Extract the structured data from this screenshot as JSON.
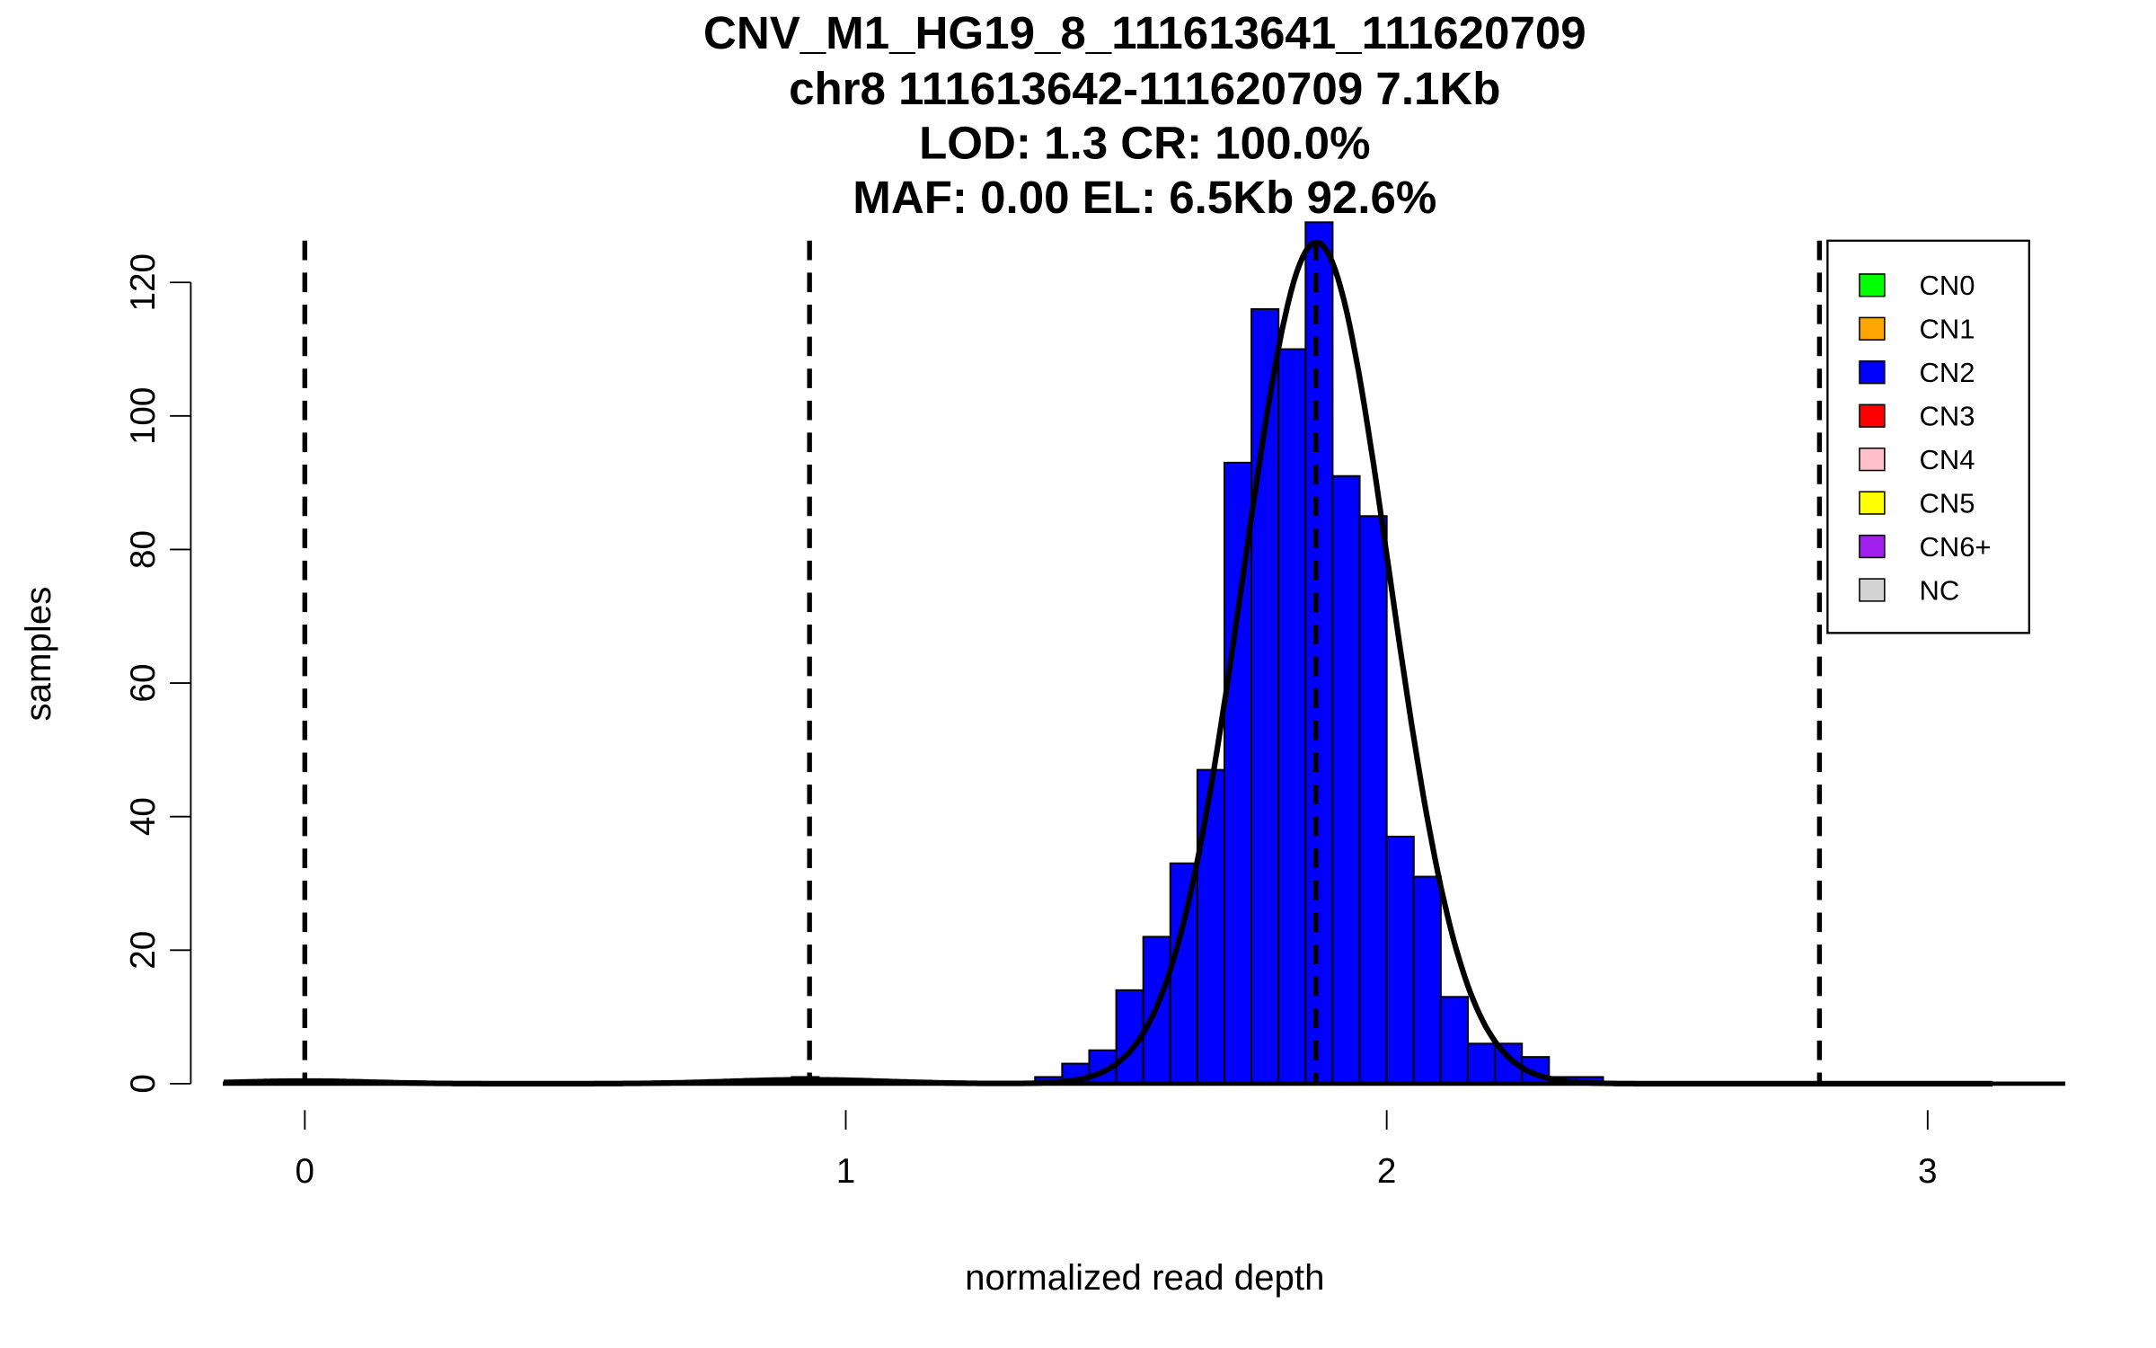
{
  "chart_data": {
    "type": "bar",
    "title_lines": [
      "CNV_M1_HG19_8_111613641_111620709",
      "chr8 111613642-111620709 7.1Kb",
      "LOD: 1.3 CR: 100.0%",
      "MAF: 0.00 EL: 6.5Kb 92.6%"
    ],
    "xlabel": "normalized read depth",
    "ylabel": "samples",
    "xlim": [
      -0.15,
      3.25
    ],
    "ylim": [
      0,
      129
    ],
    "xticks": [
      "0",
      "1",
      "2",
      "3"
    ],
    "yticks": [
      "0",
      "20",
      "40",
      "60",
      "80",
      "100",
      "120"
    ],
    "bin_width": 0.05,
    "bins": [
      {
        "x": 0.9,
        "count": 1,
        "color": "#FFA500"
      },
      {
        "x": 1.35,
        "count": 1
      },
      {
        "x": 1.4,
        "count": 3
      },
      {
        "x": 1.45,
        "count": 5
      },
      {
        "x": 1.5,
        "count": 14
      },
      {
        "x": 1.55,
        "count": 22
      },
      {
        "x": 1.6,
        "count": 33
      },
      {
        "x": 1.65,
        "count": 47
      },
      {
        "x": 1.7,
        "count": 93
      },
      {
        "x": 1.75,
        "count": 116
      },
      {
        "x": 1.8,
        "count": 110
      },
      {
        "x": 1.85,
        "count": 129
      },
      {
        "x": 1.9,
        "count": 91
      },
      {
        "x": 1.95,
        "count": 85
      },
      {
        "x": 2.0,
        "count": 37
      },
      {
        "x": 2.05,
        "count": 31
      },
      {
        "x": 2.1,
        "count": 13
      },
      {
        "x": 2.15,
        "count": 6
      },
      {
        "x": 2.2,
        "count": 6
      },
      {
        "x": 2.25,
        "count": 4
      },
      {
        "x": 2.3,
        "count": 1
      },
      {
        "x": 2.35,
        "count": 1
      }
    ],
    "bar_color": "#0000FF",
    "fit_curve": {
      "components": [
        {
          "mean": 0.0,
          "sd": 0.12,
          "peak": 0.4
        },
        {
          "mean": 0.93,
          "sd": 0.14,
          "peak": 0.6
        },
        {
          "mean": 1.87,
          "sd": 0.135,
          "peak": 126
        }
      ],
      "range": [
        -0.15,
        3.12
      ]
    },
    "dashed_lines": [
      0.0,
      0.933,
      1.869,
      2.8
    ],
    "legend": {
      "position": "top-right",
      "entries": [
        {
          "label": "CN0",
          "color": "#00FF00"
        },
        {
          "label": "CN1",
          "color": "#FFA500"
        },
        {
          "label": "CN2",
          "color": "#0000FF"
        },
        {
          "label": "CN3",
          "color": "#FF0000"
        },
        {
          "label": "CN4",
          "color": "#FFC0CB"
        },
        {
          "label": "CN5",
          "color": "#FFFF00"
        },
        {
          "label": "CN6+",
          "color": "#A020F0"
        },
        {
          "label": "NC",
          "color": "#D3D3D3"
        }
      ]
    }
  }
}
